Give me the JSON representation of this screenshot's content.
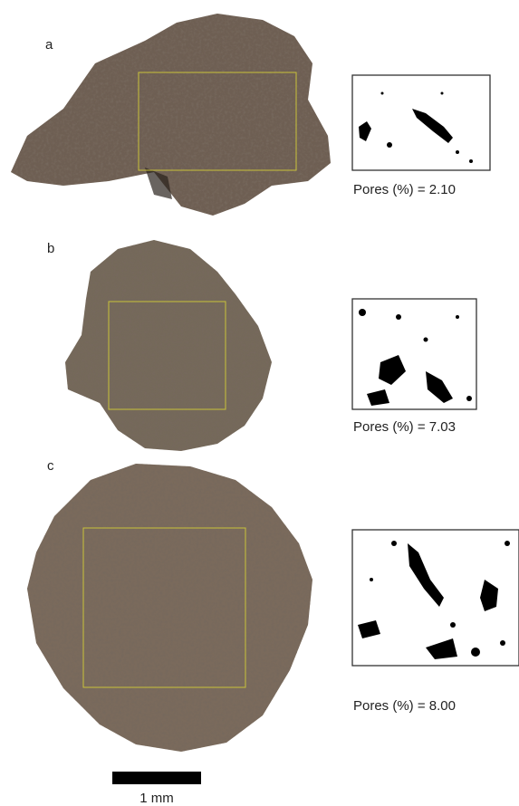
{
  "panels": [
    {
      "label": "a",
      "pores": "Pores (%) = 2.10"
    },
    {
      "label": "b",
      "pores": "Pores (%) = 7.03"
    },
    {
      "label": "c",
      "pores": "Pores (%) = 8.00"
    }
  ],
  "scale_bar": "1 mm"
}
